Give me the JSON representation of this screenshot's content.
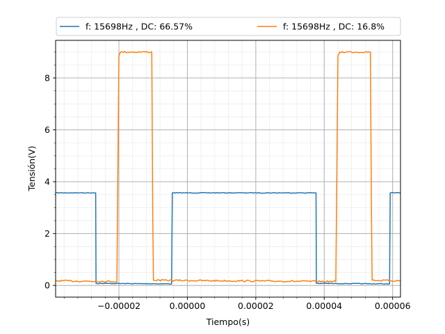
{
  "chart_data": {
    "type": "line",
    "title": "",
    "xlabel": "Tiempo(s)",
    "ylabel": "Tensión(V)",
    "xlim": [
      -3.85e-05,
      6.23e-05
    ],
    "ylim": [
      -0.45,
      9.45
    ],
    "grid": true,
    "minor_grid": true,
    "legend_position": "top",
    "x_ticks": [
      {
        "value": -2e-05,
        "label": "−0.00002"
      },
      {
        "value": 0.0,
        "label": "0.00000"
      },
      {
        "value": 2e-05,
        "label": "0.00002"
      },
      {
        "value": 4e-05,
        "label": "0.00004"
      },
      {
        "value": 6e-05,
        "label": "0.00006"
      }
    ],
    "y_ticks": [
      {
        "value": 0,
        "label": "0"
      },
      {
        "value": 2,
        "label": "2"
      },
      {
        "value": 4,
        "label": "4"
      },
      {
        "value": 6,
        "label": "6"
      },
      {
        "value": 8,
        "label": "8"
      }
    ],
    "series": [
      {
        "name": "f: 15698Hz , DC: 66.57%",
        "color": "#1f77b4",
        "points": [
          [
            -3.85e-05,
            3.57
          ],
          [
            -2.68e-05,
            3.57
          ],
          [
            -2.67e-05,
            0.08
          ],
          [
            -4.6e-06,
            0.06
          ],
          [
            -4.4e-06,
            3.57
          ],
          [
            3.76e-05,
            3.57
          ],
          [
            3.77e-05,
            0.08
          ],
          [
            5.91e-05,
            0.06
          ],
          [
            5.93e-05,
            3.57
          ],
          [
            6.23e-05,
            3.57
          ]
        ]
      },
      {
        "name": "f: 15698Hz , DC: 16.8%",
        "color": "#ff7f0e",
        "points": [
          [
            -3.85e-05,
            0.18
          ],
          [
            -2.06e-05,
            0.15
          ],
          [
            -2e-05,
            8.85
          ],
          [
            -1.95e-05,
            9.0
          ],
          [
            -1.04e-05,
            9.0
          ],
          [
            -1.01e-05,
            2.65
          ],
          [
            -9.9e-06,
            0.2
          ],
          [
            4.34e-05,
            0.15
          ],
          [
            4.4e-05,
            8.85
          ],
          [
            4.45e-05,
            9.0
          ],
          [
            5.35e-05,
            9.0
          ],
          [
            5.38e-05,
            2.9
          ],
          [
            5.4e-05,
            0.2
          ],
          [
            6.23e-05,
            0.18
          ]
        ]
      }
    ]
  }
}
